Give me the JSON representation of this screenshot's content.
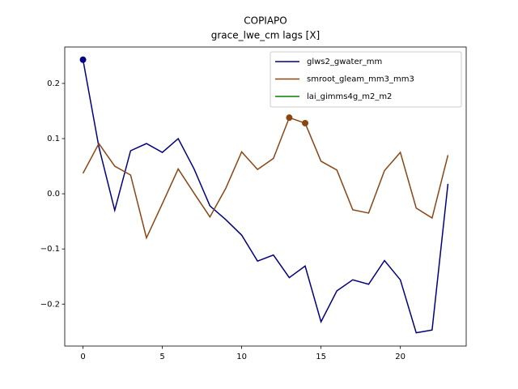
{
  "chart_data": {
    "type": "line",
    "title": [
      "COPIAPO",
      "grace_lwe_cm lags [X]"
    ],
    "x": [
      0,
      1,
      2,
      3,
      4,
      5,
      6,
      7,
      8,
      9,
      10,
      11,
      12,
      13,
      14,
      15,
      16,
      17,
      18,
      19,
      20,
      21,
      22,
      23
    ],
    "series": [
      {
        "name": "glws2_gwater_mm",
        "color": "#000080",
        "marker_indices": [
          0
        ],
        "values": [
          0.243,
          0.085,
          -0.03,
          0.078,
          0.091,
          0.075,
          0.1,
          0.045,
          -0.022,
          -0.047,
          -0.075,
          -0.122,
          -0.111,
          -0.152,
          -0.131,
          -0.232,
          -0.176,
          -0.156,
          -0.164,
          -0.121,
          -0.156,
          -0.252,
          -0.247,
          0.018
        ]
      },
      {
        "name": "smroot_gleam_mm3_mm3",
        "color": "#8b4513",
        "marker_indices": [
          13,
          14
        ],
        "values": [
          0.037,
          0.091,
          0.05,
          0.034,
          -0.08,
          -0.018,
          0.045,
          0.001,
          -0.042,
          0.01,
          0.076,
          0.044,
          0.064,
          0.138,
          0.128,
          0.059,
          0.043,
          -0.029,
          -0.035,
          0.042,
          0.075,
          -0.026,
          -0.044,
          0.07
        ]
      },
      {
        "name": "lai_gimms4g_m2_m2",
        "color": "#008000",
        "marker_indices": [],
        "values": [
          null,
          null,
          null,
          null,
          null,
          null,
          null,
          null,
          null,
          null,
          null,
          null,
          null,
          null,
          null,
          null,
          null,
          null,
          null,
          null,
          null,
          null,
          null,
          null
        ]
      }
    ],
    "xlim": [
      -1.15,
      24.15
    ],
    "xticks": [
      0,
      5,
      10,
      15,
      20
    ],
    "ylim": [
      -0.276,
      0.266
    ],
    "yticks": [
      {
        "value": -0.2,
        "label": "−0.2"
      },
      {
        "value": -0.1,
        "label": "−0.1"
      },
      {
        "value": 0,
        "label": "0.0"
      },
      0.1,
      0.2
    ],
    "legend": "upper right",
    "grid": false
  }
}
